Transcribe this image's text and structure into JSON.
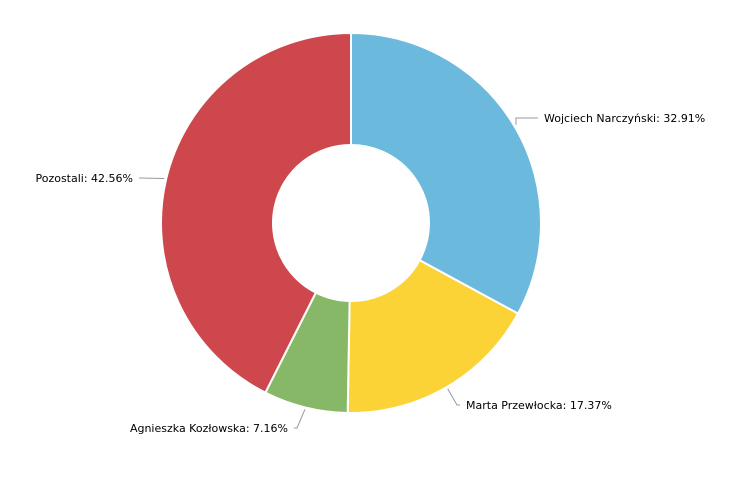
{
  "chart_data": {
    "type": "pie",
    "variant": "donut",
    "title": "",
    "legend": "none",
    "slices": [
      {
        "name": "Wojciech Narczyński",
        "value": 32.91,
        "label": "Wojciech Narczyński: 32.91%",
        "color": "#6bb9dc"
      },
      {
        "name": "Marta Przewłocka",
        "value": 17.37,
        "label": "Marta Przewłocka: 17.37%",
        "color": "#fbd337"
      },
      {
        "name": "Agnieszka Kozłowska",
        "value": 7.16,
        "label": "Agnieszka Kozłowska: 7.16%",
        "color": "#86b867"
      },
      {
        "name": "Pozostali",
        "value": 42.56,
        "label": "Pozostali: 42.56%",
        "color": "#cd474c"
      }
    ]
  }
}
